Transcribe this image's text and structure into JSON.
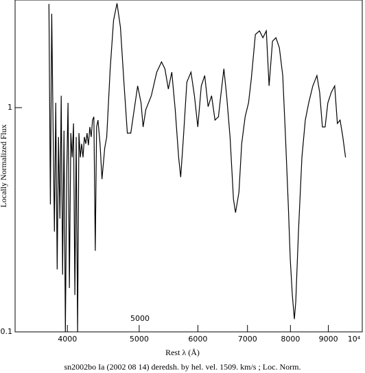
{
  "chart_data": {
    "type": "line",
    "title": "sn2002bo Ia (2002 08 14) deredsh. by hel. vel. 1509. km/s ; Loc. Norm.",
    "x_label": "Rest λ (Å)",
    "y_label": "Locally Normalized Flux",
    "annotation": "5000",
    "log_x": true,
    "log_y": true,
    "xlim": [
      3400,
      10000
    ],
    "ylim": [
      0.1,
      3.02
    ],
    "xticks": [
      4000,
      5000,
      6000,
      7000,
      8000,
      9000,
      {
        "value": 10000,
        "label": "10⁴"
      }
    ],
    "yticks": [
      0.1,
      1
    ],
    "series": [
      {
        "name": "sn2002bo",
        "color": "#000000",
        "x": [
          3777,
          3794,
          3810,
          3826,
          3842,
          3858,
          3875,
          3891,
          3908,
          3924,
          3941,
          3958,
          3975,
          3992,
          4008,
          4025,
          4043,
          4060,
          4077,
          4094,
          4111,
          4129,
          4146,
          4164,
          4181,
          4199,
          4217,
          4235,
          4252,
          4270,
          4289,
          4307,
          4325,
          4343,
          4362,
          4380,
          4399,
          4427,
          4454,
          4492,
          4520,
          4569,
          4617,
          4667,
          4717,
          4768,
          4819,
          4871,
          4923,
          4976,
          5029,
          5061,
          5104,
          5192,
          5280,
          5359,
          5416,
          5474,
          5533,
          5592,
          5652,
          5688,
          5737,
          5798,
          5873,
          5936,
          5999,
          6064,
          6129,
          6194,
          6261,
          6328,
          6396,
          6450,
          6505,
          6561,
          6631,
          6702,
          6745,
          6817,
          6875,
          6949,
          7023,
          7083,
          7174,
          7266,
          7344,
          7422,
          7486,
          7566,
          7647,
          7729,
          7811,
          7878,
          7946,
          7996,
          8047,
          8098,
          8133,
          8202,
          8290,
          8378,
          8467,
          8576,
          8686,
          8760,
          8835,
          8910,
          8986,
          9082,
          9179,
          9256,
          9335,
          9414,
          9494
        ],
        "values": [
          2.9,
          0.37,
          2.62,
          0.82,
          0.28,
          1.05,
          0.19,
          0.74,
          0.32,
          1.13,
          0.18,
          0.79,
          0.1,
          0.52,
          1.05,
          0.157,
          0.77,
          0.6,
          0.85,
          0.146,
          0.74,
          0.1,
          0.77,
          0.6,
          0.69,
          0.6,
          0.74,
          0.69,
          0.77,
          0.68,
          0.82,
          0.74,
          0.88,
          0.91,
          0.23,
          0.82,
          0.88,
          0.69,
          0.48,
          0.66,
          0.74,
          1.49,
          2.45,
          2.92,
          2.28,
          1.3,
          0.77,
          0.77,
          0.98,
          1.25,
          1.05,
          0.82,
          0.98,
          1.13,
          1.44,
          1.6,
          1.49,
          1.21,
          1.44,
          0.98,
          0.6,
          0.49,
          0.74,
          1.3,
          1.44,
          1.13,
          0.82,
          1.25,
          1.39,
          1.01,
          1.13,
          0.88,
          0.91,
          1.17,
          1.49,
          1.13,
          0.74,
          0.39,
          0.34,
          0.42,
          0.69,
          0.91,
          1.05,
          1.34,
          2.12,
          2.2,
          2.05,
          2.2,
          1.25,
          1.98,
          2.05,
          1.85,
          1.39,
          0.74,
          0.37,
          0.21,
          0.146,
          0.114,
          0.136,
          0.28,
          0.6,
          0.88,
          1.05,
          1.25,
          1.39,
          1.17,
          0.82,
          0.82,
          1.05,
          1.17,
          1.25,
          0.85,
          0.88,
          0.74,
          0.6
        ]
      }
    ]
  }
}
